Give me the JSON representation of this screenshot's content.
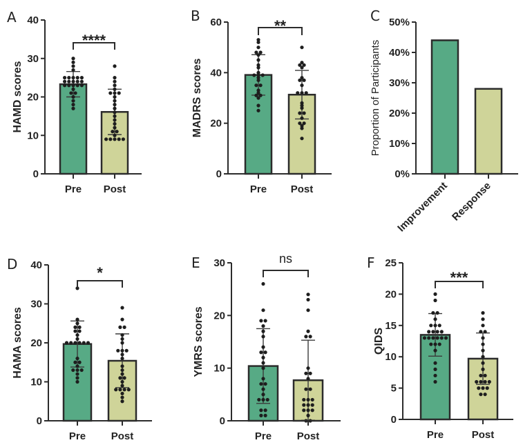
{
  "colors": {
    "pre": "#57aa85",
    "post": "#cfd499",
    "axis": "#2b2b2b",
    "dot": "#1e1e1e"
  },
  "chart_data": [
    {
      "id": "A",
      "type": "bar",
      "panel_label": "A",
      "ylabel": "HAMD scores",
      "ylim": [
        0,
        40
      ],
      "yticks": [
        0,
        10,
        20,
        30,
        40
      ],
      "ytick_labels": [
        "0",
        "10",
        "20",
        "30",
        "40"
      ],
      "categories": [
        "Pre",
        "Post"
      ],
      "values": [
        23.3,
        16.1
      ],
      "sd": [
        3.3,
        5.9
      ],
      "points": [
        [
          30,
          29,
          28,
          27,
          25,
          25,
          25,
          25,
          25,
          24,
          24,
          24,
          24,
          24,
          23,
          23,
          23,
          23,
          23,
          22,
          21,
          21,
          20,
          19,
          18,
          17
        ],
        [
          28,
          25,
          24,
          23,
          22,
          21,
          21,
          21,
          20,
          19,
          18,
          17,
          16,
          15,
          14,
          13,
          12,
          11,
          11,
          10,
          9,
          9,
          9,
          9,
          9
        ]
      ],
      "significance": "****"
    },
    {
      "id": "B",
      "type": "bar",
      "panel_label": "B",
      "ylabel": "MADRS scores",
      "ylim": [
        0,
        60
      ],
      "yticks": [
        0,
        20,
        40,
        60
      ],
      "ytick_labels": [
        "0",
        "20",
        "40",
        "60"
      ],
      "categories": [
        "Pre",
        "Post"
      ],
      "values": [
        39.1,
        31.3
      ],
      "sd": [
        8.0,
        9.6
      ],
      "points": [
        [
          53,
          52,
          50,
          48,
          48,
          47,
          45,
          43,
          42,
          40,
          39,
          39,
          39,
          38,
          37,
          35,
          35,
          33,
          32,
          31,
          31,
          30,
          27,
          25
        ],
        [
          50,
          44,
          43,
          43,
          42,
          38,
          37,
          37,
          35,
          32,
          32,
          32,
          28,
          27,
          26,
          24,
          24,
          22,
          20,
          20,
          19,
          18,
          14
        ]
      ],
      "significance": "**"
    },
    {
      "id": "C",
      "type": "bar",
      "panel_label": "C",
      "ylabel": "Proportion of Participants",
      "ylim": [
        0,
        50
      ],
      "yticks": [
        0,
        10,
        20,
        30,
        40,
        50
      ],
      "ytick_labels": [
        "0%",
        "10%",
        "20%",
        "30%",
        "40%",
        "50%"
      ],
      "categories": [
        "Improvement",
        "Response"
      ],
      "values": [
        44,
        28
      ]
    },
    {
      "id": "D",
      "type": "bar",
      "panel_label": "D",
      "ylabel": "HAMA scores",
      "ylim": [
        0,
        40
      ],
      "yticks": [
        0,
        10,
        20,
        30,
        40
      ],
      "ytick_labels": [
        "0",
        "10",
        "20",
        "30",
        "40"
      ],
      "categories": [
        "Pre",
        "Post"
      ],
      "values": [
        19.7,
        15.4
      ],
      "sd": [
        5.9,
        6.9
      ],
      "points": [
        [
          34,
          26,
          25,
          24,
          24,
          23,
          23,
          22,
          21,
          20,
          20,
          20,
          20,
          20,
          20,
          16,
          15,
          15,
          14,
          13,
          13,
          13,
          12,
          11,
          10
        ],
        [
          29,
          26,
          24,
          24,
          22,
          21,
          20,
          18,
          18,
          18,
          17,
          16,
          14,
          13,
          12,
          11,
          11,
          10,
          9,
          8,
          8,
          8,
          8,
          7,
          6,
          5
        ]
      ],
      "significance": "*"
    },
    {
      "id": "E",
      "type": "bar",
      "panel_label": "E",
      "ylabel": "YMRS scores",
      "ylim": [
        0,
        30
      ],
      "yticks": [
        0,
        10,
        20,
        30
      ],
      "ytick_labels": [
        "0",
        "10",
        "20",
        "30"
      ],
      "categories": [
        "Pre",
        "Post"
      ],
      "values": [
        10.4,
        7.7
      ],
      "sd": [
        7.1,
        7.6
      ],
      "points": [
        [
          26,
          21,
          19,
          19,
          18,
          17,
          16,
          14,
          13,
          13,
          12,
          11,
          10,
          8,
          7,
          7,
          6,
          5,
          4,
          4,
          4,
          2,
          2,
          1,
          1
        ],
        [
          24,
          23,
          21,
          17,
          16,
          16,
          10,
          9,
          9,
          8,
          6,
          6,
          4,
          4,
          4,
          3,
          3,
          3,
          2,
          2,
          2,
          1,
          0,
          0
        ]
      ],
      "significance": "ns"
    },
    {
      "id": "F",
      "type": "bar",
      "panel_label": "F",
      "ylabel": "QIDS",
      "ylim": [
        0,
        25
      ],
      "yticks": [
        0,
        5,
        10,
        15,
        20,
        25
      ],
      "ytick_labels": [
        "0",
        "5",
        "10",
        "15",
        "20",
        "25"
      ],
      "categories": [
        "Pre",
        "Post"
      ],
      "values": [
        13.5,
        9.7
      ],
      "sd": [
        3.4,
        4.1
      ],
      "points": [
        [
          20,
          19,
          17,
          17,
          16,
          15,
          15,
          15,
          14,
          14,
          14,
          14,
          13,
          13,
          13,
          13,
          13,
          13,
          12,
          12,
          12,
          11,
          9,
          8,
          7,
          6
        ],
        [
          17,
          16,
          15,
          14,
          14,
          13,
          12,
          11,
          10,
          9,
          8,
          7,
          7,
          6,
          6,
          6,
          6,
          5,
          5,
          5,
          4,
          4
        ]
      ],
      "significance": "***"
    }
  ]
}
